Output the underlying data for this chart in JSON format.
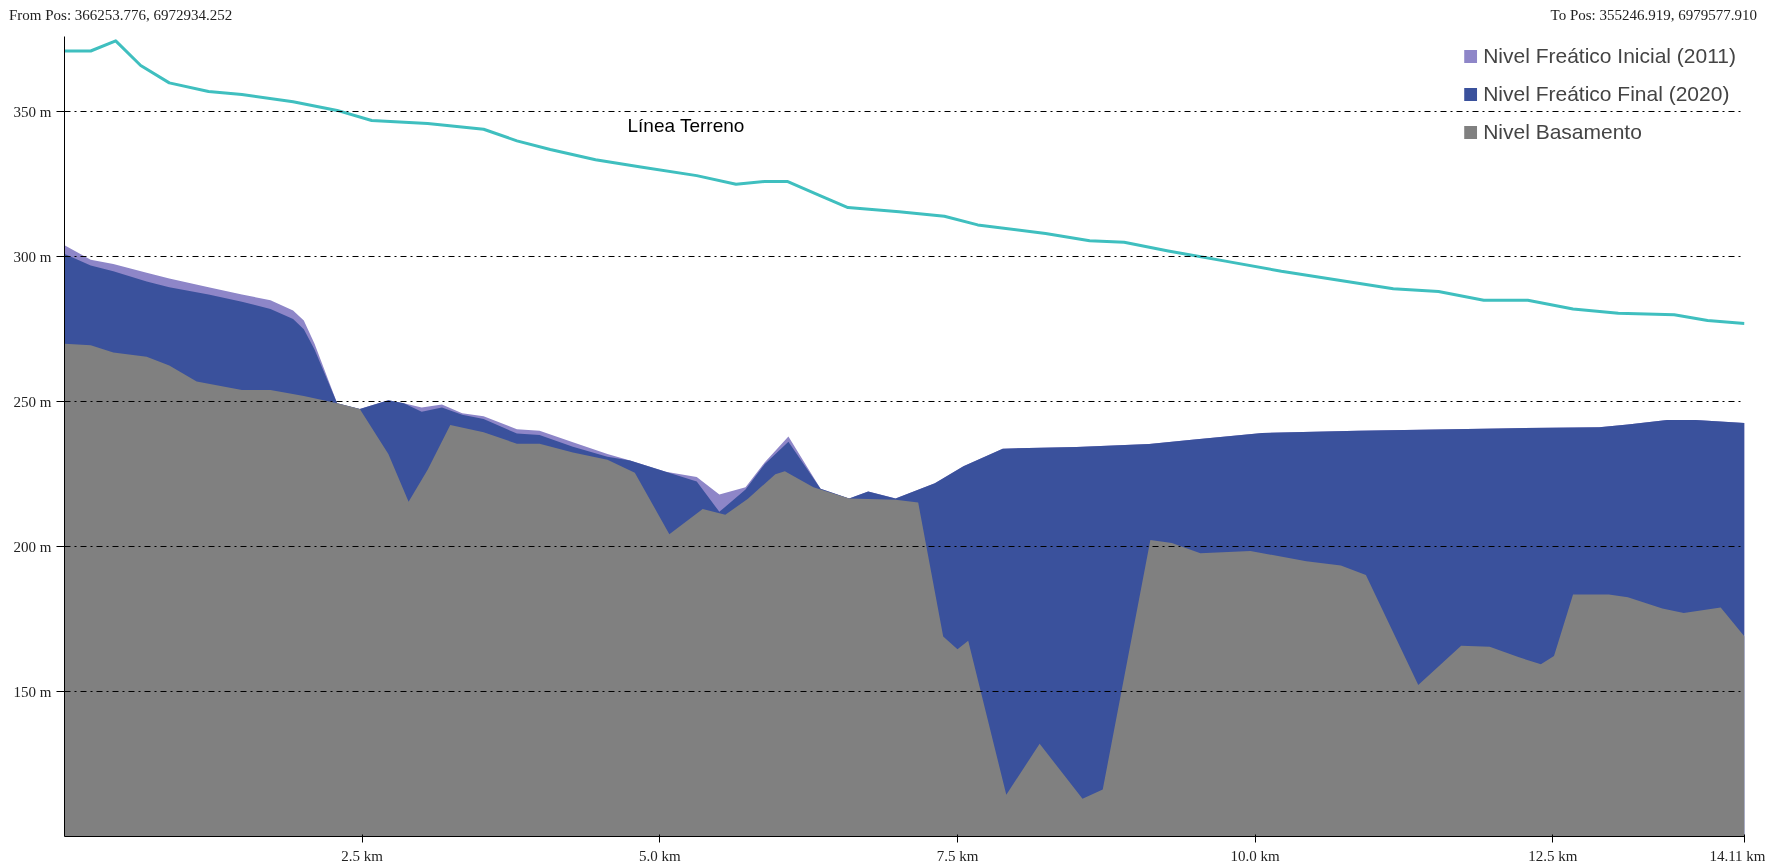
{
  "chart_data": {
    "type": "area",
    "annotations": [
      "From Pos: 366253.776, 6972934.252",
      "To Pos: 355246.919, 6979577.910"
    ],
    "xlim": [
      0,
      14.11
    ],
    "xticks": [
      {
        "value": 2.5,
        "label": "2.5 km"
      },
      {
        "value": 5.0,
        "label": "5.0 km"
      },
      {
        "value": 7.5,
        "label": "7.5 km"
      },
      {
        "value": 10.0,
        "label": "10.0 km"
      },
      {
        "value": 12.5,
        "label": "12.5 km"
      },
      {
        "value": 14.11,
        "label": "14.11 km"
      }
    ],
    "ylim": [
      100,
      376
    ],
    "yticks": [
      {
        "value": 150,
        "label": "150 m"
      },
      {
        "value": 200,
        "label": "200 m"
      },
      {
        "value": 250,
        "label": "250 m"
      },
      {
        "value": 300,
        "label": "300 m"
      },
      {
        "value": 350,
        "label": "350 m"
      }
    ],
    "grid": "y",
    "legend": "top right",
    "series": [
      {
        "name": "Nivel Freático Inicial (2011)",
        "color": "#8e86c8",
        "x": [
          0,
          0.22,
          0.41,
          0.69,
          0.88,
          1.21,
          1.49,
          1.73,
          1.92,
          2.01,
          2.1,
          2.29,
          2.48,
          2.72,
          2.85,
          3.0,
          3.17,
          3.34,
          3.52,
          3.8,
          3.99,
          4.27,
          4.56,
          4.75,
          5.05,
          5.31,
          5.5,
          5.72,
          5.88,
          6.08,
          6.35,
          6.59,
          6.75,
          6.98,
          7.31,
          7.55,
          7.88,
          8.5,
          9.11,
          9.49,
          10.06,
          10.86,
          12.04,
          12.89,
          13.13,
          13.46,
          13.7,
          14.11
        ],
        "values": [
          304,
          299,
          297.5,
          294.5,
          292.5,
          289.5,
          287,
          285,
          281.5,
          278,
          270,
          249.5,
          247.5,
          250.5,
          249.5,
          248,
          249,
          246,
          245,
          240.5,
          240,
          236,
          232,
          229.7,
          225.8,
          224,
          218,
          220.5,
          229,
          238,
          220,
          216.6,
          219,
          216.6,
          221.9,
          227.7,
          233.8,
          234.4,
          235.4,
          237,
          239.2,
          240,
          240.8,
          241.2,
          242.1,
          243.7,
          243.7,
          242.7
        ]
      },
      {
        "name": "Nivel Freático Final (2020)",
        "color": "#3a519c",
        "x": [
          0,
          0.22,
          0.41,
          0.69,
          0.88,
          1.21,
          1.49,
          1.73,
          1.92,
          2.01,
          2.1,
          2.29,
          2.48,
          2.72,
          2.85,
          3.0,
          3.17,
          3.34,
          3.52,
          3.8,
          3.99,
          4.27,
          4.56,
          4.75,
          5.05,
          5.31,
          5.5,
          5.72,
          5.88,
          6.08,
          6.35,
          6.59,
          6.75,
          6.98,
          7.31,
          7.55,
          7.88,
          8.5,
          9.11,
          9.49,
          10.06,
          10.86,
          12.04,
          12.89,
          13.13,
          13.46,
          13.7,
          14.11
        ],
        "values": [
          301,
          297,
          295,
          291.5,
          289.5,
          287,
          284.5,
          282,
          278.5,
          275,
          268,
          249.5,
          247.5,
          250.5,
          249.5,
          246.5,
          248,
          245.5,
          244,
          239,
          238.5,
          234.5,
          231,
          229.7,
          225.8,
          222.5,
          212,
          219.7,
          228.4,
          236.2,
          220,
          216.6,
          219,
          216.6,
          221.9,
          227.7,
          233.8,
          234.4,
          235.4,
          237,
          239.2,
          240,
          240.8,
          241.2,
          242.1,
          243.7,
          243.7,
          242.7
        ]
      },
      {
        "name": "Nivel Basamento",
        "color": "#808080",
        "x": [
          0,
          0.22,
          0.41,
          0.69,
          0.88,
          1.11,
          1.49,
          1.73,
          2.01,
          2.29,
          2.48,
          2.72,
          2.89,
          3.05,
          3.24,
          3.52,
          3.8,
          3.99,
          4.27,
          4.56,
          4.79,
          5.08,
          5.36,
          5.55,
          5.74,
          5.97,
          6.05,
          6.29,
          6.59,
          6.98,
          7.17,
          7.38,
          7.5,
          7.59,
          7.91,
          8.19,
          8.55,
          8.72,
          9.12,
          9.3,
          9.54,
          9.96,
          10.43,
          10.72,
          10.93,
          11.37,
          11.73,
          11.97,
          12.21,
          12.4,
          12.51,
          12.67,
          12.97,
          13.13,
          13.42,
          13.6,
          13.91,
          14.11
        ],
        "values": [
          270,
          269.5,
          267,
          265.5,
          262.5,
          257,
          254,
          254,
          252,
          249.5,
          247.5,
          232,
          215.5,
          226.5,
          242,
          239.5,
          235.5,
          235.5,
          232.5,
          230,
          225.5,
          204.3,
          213,
          211,
          216.5,
          225,
          226,
          220.5,
          216.6,
          216.2,
          215.2,
          169,
          164.6,
          167.5,
          114.4,
          132,
          113,
          116.2,
          202.3,
          201.3,
          197.7,
          198.5,
          195,
          193.5,
          190.2,
          152.3,
          165.8,
          165.5,
          161.9,
          159.4,
          162.3,
          183.5,
          183.5,
          182.5,
          178.7,
          177.1,
          179,
          169
        ]
      },
      {
        "name": "Línea Terreno",
        "type": "line",
        "color": "#3fbfbf",
        "x": [
          0,
          0.22,
          0.43,
          0.64,
          0.88,
          1.21,
          1.49,
          1.92,
          2.29,
          2.58,
          3.05,
          3.52,
          3.8,
          4.08,
          4.46,
          4.84,
          5.31,
          5.64,
          5.88,
          6.07,
          6.35,
          6.58,
          7.01,
          7.39,
          7.67,
          8.24,
          8.61,
          8.9,
          9.27,
          9.75,
          10.22,
          10.69,
          11.16,
          11.54,
          11.92,
          12.29,
          12.67,
          13.05,
          13.52,
          13.8,
          14.11
        ],
        "values": [
          371,
          371,
          374.5,
          366,
          360,
          357,
          356,
          353.5,
          350.5,
          347,
          346,
          344,
          340,
          337,
          333.5,
          331,
          328,
          325,
          326,
          326,
          321,
          317,
          315.5,
          314,
          311,
          308,
          305.5,
          305,
          302,
          298.5,
          295,
          292,
          289,
          288,
          285,
          285,
          282,
          280.5,
          280,
          278,
          277
        ]
      }
    ]
  }
}
